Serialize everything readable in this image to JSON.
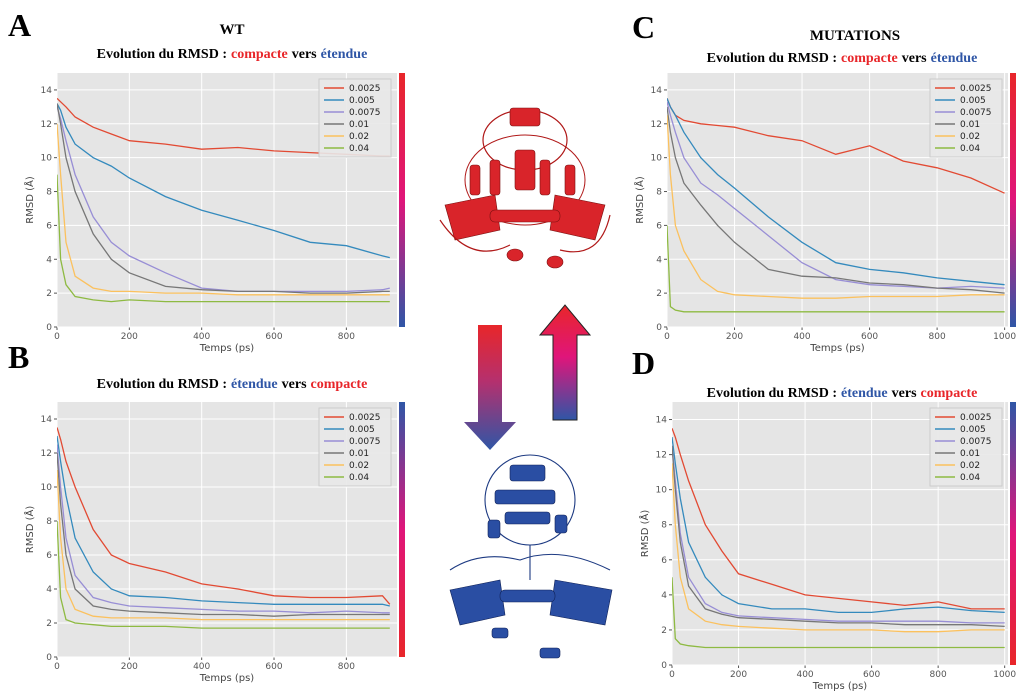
{
  "chart_data": [
    {
      "type": "line",
      "panel_label": "A",
      "group_label": "WT",
      "title": [
        {
          "text": "Evolution du RMSD :",
          "color": "#000000"
        },
        {
          "text": "compacte",
          "color": "#e8262a"
        },
        {
          "text": "vers",
          "color": "#000000"
        },
        {
          "text": "étendue",
          "color": "#2f56a6"
        }
      ],
      "xlabel": "Temps (ps)",
      "ylabel": "RMSD (Å)",
      "x": [
        0,
        10,
        25,
        50,
        100,
        150,
        200,
        300,
        400,
        500,
        600,
        700,
        800,
        900,
        920
      ],
      "xlim": [
        0,
        940
      ],
      "xticks": [
        0,
        200,
        400,
        600,
        800
      ],
      "ylim": [
        0,
        15
      ],
      "yticks": [
        0,
        2,
        4,
        6,
        8,
        10,
        12,
        14
      ],
      "grid": true,
      "legend": "upper right",
      "colorbar": [
        "#e8262a",
        "#e0157a",
        "#2f56a6"
      ],
      "series": [
        {
          "name": "0.0025",
          "color": "#e24a33",
          "values": [
            13.5,
            13.3,
            13,
            12.4,
            11.8,
            11.4,
            11,
            10.8,
            10.5,
            10.6,
            10.4,
            10.3,
            10.2,
            10.1,
            10.1
          ]
        },
        {
          "name": "0.005",
          "color": "#348abd",
          "values": [
            13.2,
            12.8,
            11.8,
            10.8,
            10,
            9.5,
            8.8,
            7.7,
            6.9,
            6.3,
            5.7,
            5.0,
            4.8,
            4.2,
            4.1
          ]
        },
        {
          "name": "0.0075",
          "color": "#988ed5",
          "values": [
            13,
            12.3,
            11,
            9,
            6.5,
            5,
            4.2,
            3.2,
            2.3,
            2.1,
            2.1,
            2.1,
            2.1,
            2.2,
            2.3
          ]
        },
        {
          "name": "0.01",
          "color": "#777777",
          "values": [
            13.2,
            12,
            10,
            8,
            5.5,
            4,
            3.2,
            2.4,
            2.2,
            2.1,
            2.1,
            2.0,
            2.0,
            2.1,
            2.1
          ]
        },
        {
          "name": "0.02",
          "color": "#fbc15e",
          "values": [
            12,
            9,
            5,
            3,
            2.3,
            2.1,
            2.1,
            2.0,
            2.0,
            1.9,
            1.9,
            1.9,
            1.9,
            1.9,
            1.9
          ]
        },
        {
          "name": "0.04",
          "color": "#8eba42",
          "values": [
            9,
            4,
            2.5,
            1.8,
            1.6,
            1.5,
            1.6,
            1.5,
            1.5,
            1.5,
            1.5,
            1.5,
            1.5,
            1.5,
            1.5
          ]
        }
      ]
    },
    {
      "type": "line",
      "panel_label": "B",
      "title": [
        {
          "text": "Evolution du RMSD :",
          "color": "#000000"
        },
        {
          "text": "étendue",
          "color": "#2f56a6"
        },
        {
          "text": "vers",
          "color": "#000000"
        },
        {
          "text": "compacte",
          "color": "#e8262a"
        }
      ],
      "xlabel": "Temps (ps)",
      "ylabel": "RMSD (Å)",
      "x": [
        0,
        10,
        25,
        50,
        100,
        150,
        200,
        300,
        400,
        500,
        600,
        700,
        800,
        900,
        920
      ],
      "xlim": [
        0,
        940
      ],
      "xticks": [
        0,
        200,
        400,
        600,
        800
      ],
      "ylim": [
        0,
        15
      ],
      "yticks": [
        0,
        2,
        4,
        6,
        8,
        10,
        12,
        14
      ],
      "grid": true,
      "legend": "upper right",
      "colorbar": [
        "#2f56a6",
        "#e0157a",
        "#e8262a"
      ],
      "series": [
        {
          "name": "0.0025",
          "color": "#e24a33",
          "values": [
            13.5,
            12.8,
            11.5,
            10,
            7.5,
            6,
            5.5,
            5,
            4.3,
            4,
            3.6,
            3.5,
            3.5,
            3.6,
            3.1
          ]
        },
        {
          "name": "0.005",
          "color": "#348abd",
          "values": [
            13,
            11.5,
            9.5,
            7,
            5,
            4,
            3.6,
            3.5,
            3.3,
            3.2,
            3.1,
            3.1,
            3.1,
            3.1,
            3.0
          ]
        },
        {
          "name": "0.0075",
          "color": "#988ed5",
          "values": [
            12.5,
            10,
            7,
            4.8,
            3.5,
            3.2,
            3,
            2.9,
            2.8,
            2.7,
            2.7,
            2.6,
            2.7,
            2.6,
            2.6
          ]
        },
        {
          "name": "0.01",
          "color": "#777777",
          "values": [
            12,
            9,
            6,
            4,
            3,
            2.8,
            2.7,
            2.6,
            2.5,
            2.5,
            2.4,
            2.5,
            2.5,
            2.5,
            2.5
          ]
        },
        {
          "name": "0.02",
          "color": "#fbc15e",
          "values": [
            11,
            7,
            4,
            2.8,
            2.4,
            2.3,
            2.3,
            2.3,
            2.2,
            2.2,
            2.2,
            2.2,
            2.2,
            2.2,
            2.2
          ]
        },
        {
          "name": "0.04",
          "color": "#8eba42",
          "values": [
            8,
            3.5,
            2.2,
            2.0,
            1.9,
            1.8,
            1.8,
            1.8,
            1.7,
            1.7,
            1.7,
            1.7,
            1.7,
            1.7,
            1.7
          ]
        }
      ]
    },
    {
      "type": "line",
      "panel_label": "C",
      "group_label": "MUTATIONS",
      "title": [
        {
          "text": "Evolution du RMSD :",
          "color": "#000000"
        },
        {
          "text": "compacte",
          "color": "#e8262a"
        },
        {
          "text": "vers",
          "color": "#000000"
        },
        {
          "text": "étendue",
          "color": "#2f56a6"
        }
      ],
      "xlabel": "Temps (ps)",
      "ylabel": "RMSD (Å)",
      "x": [
        0,
        10,
        25,
        50,
        100,
        150,
        200,
        300,
        400,
        500,
        600,
        700,
        800,
        900,
        1000
      ],
      "xlim": [
        0,
        1010
      ],
      "xticks": [
        0,
        200,
        400,
        600,
        800,
        1000
      ],
      "ylim": [
        0,
        15
      ],
      "yticks": [
        0,
        2,
        4,
        6,
        8,
        10,
        12,
        14
      ],
      "grid": true,
      "legend": "upper right",
      "colorbar": [
        "#e8262a",
        "#e0157a",
        "#2f56a6"
      ],
      "series": [
        {
          "name": "0.0025",
          "color": "#e24a33",
          "values": [
            13.5,
            13,
            12.5,
            12.2,
            12,
            11.9,
            11.8,
            11.3,
            11,
            10.2,
            10.7,
            9.8,
            9.4,
            8.8,
            7.9
          ]
        },
        {
          "name": "0.005",
          "color": "#348abd",
          "values": [
            13.5,
            13,
            12.5,
            11.5,
            10,
            9,
            8.2,
            6.5,
            5,
            3.8,
            3.4,
            3.2,
            2.9,
            2.7,
            2.5
          ]
        },
        {
          "name": "0.0075",
          "color": "#988ed5",
          "values": [
            13.3,
            12.5,
            11.5,
            10,
            8.5,
            7.8,
            7,
            5.4,
            3.8,
            2.8,
            2.5,
            2.4,
            2.3,
            2.4,
            2.3
          ]
        },
        {
          "name": "0.01",
          "color": "#777777",
          "values": [
            13,
            11.5,
            10,
            8.5,
            7.2,
            6,
            5,
            3.4,
            3,
            2.9,
            2.6,
            2.5,
            2.3,
            2.2,
            2.0
          ]
        },
        {
          "name": "0.02",
          "color": "#fbc15e",
          "values": [
            12.5,
            9,
            6,
            4.5,
            2.8,
            2.1,
            1.9,
            1.8,
            1.7,
            1.7,
            1.8,
            1.8,
            1.8,
            1.9,
            1.9
          ]
        },
        {
          "name": "0.04",
          "color": "#8eba42",
          "values": [
            6,
            1.2,
            1.0,
            0.9,
            0.9,
            0.9,
            0.9,
            0.9,
            0.9,
            0.9,
            0.9,
            0.9,
            0.9,
            0.9,
            0.9
          ]
        }
      ]
    },
    {
      "type": "line",
      "panel_label": "D",
      "title": [
        {
          "text": "Evolution du RMSD :",
          "color": "#000000"
        },
        {
          "text": "étendue",
          "color": "#2f56a6"
        },
        {
          "text": "vers",
          "color": "#000000"
        },
        {
          "text": "compacte",
          "color": "#e8262a"
        }
      ],
      "xlabel": "Temps (ps)",
      "ylabel": "RMSD (Å)",
      "x": [
        0,
        10,
        25,
        50,
        100,
        150,
        200,
        300,
        400,
        500,
        600,
        700,
        800,
        900,
        1000
      ],
      "xlim": [
        0,
        1010
      ],
      "xticks": [
        0,
        200,
        400,
        600,
        800,
        1000
      ],
      "ylim": [
        0,
        15
      ],
      "yticks": [
        0,
        2,
        4,
        6,
        8,
        10,
        12,
        14
      ],
      "grid": true,
      "legend": "upper right",
      "colorbar": [
        "#2f56a6",
        "#e0157a",
        "#e8262a"
      ],
      "series": [
        {
          "name": "0.0025",
          "color": "#e24a33",
          "values": [
            13.5,
            13,
            12,
            10.5,
            8,
            6.5,
            5.2,
            4.6,
            4.0,
            3.8,
            3.6,
            3.4,
            3.6,
            3.2,
            3.2
          ]
        },
        {
          "name": "0.005",
          "color": "#348abd",
          "values": [
            13,
            11.5,
            9.5,
            7,
            5,
            4,
            3.5,
            3.2,
            3.2,
            3.0,
            3.0,
            3.2,
            3.3,
            3.1,
            3.0
          ]
        },
        {
          "name": "0.0075",
          "color": "#988ed5",
          "values": [
            12.5,
            10.5,
            7.5,
            5,
            3.5,
            3,
            2.8,
            2.7,
            2.6,
            2.5,
            2.5,
            2.5,
            2.5,
            2.4,
            2.4
          ]
        },
        {
          "name": "0.01",
          "color": "#777777",
          "values": [
            12.5,
            10,
            7,
            4.5,
            3.2,
            2.9,
            2.7,
            2.6,
            2.5,
            2.4,
            2.4,
            2.3,
            2.3,
            2.3,
            2.2
          ]
        },
        {
          "name": "0.02",
          "color": "#fbc15e",
          "values": [
            11.5,
            8,
            5,
            3.2,
            2.5,
            2.3,
            2.2,
            2.1,
            2.0,
            2.0,
            2.0,
            1.9,
            1.9,
            2.0,
            2.0
          ]
        },
        {
          "name": "0.04",
          "color": "#8eba42",
          "values": [
            5,
            1.5,
            1.2,
            1.1,
            1.0,
            1.0,
            1.0,
            1.0,
            1.0,
            1.0,
            1.0,
            1.0,
            1.0,
            1.0,
            1.0
          ]
        }
      ]
    }
  ]
}
